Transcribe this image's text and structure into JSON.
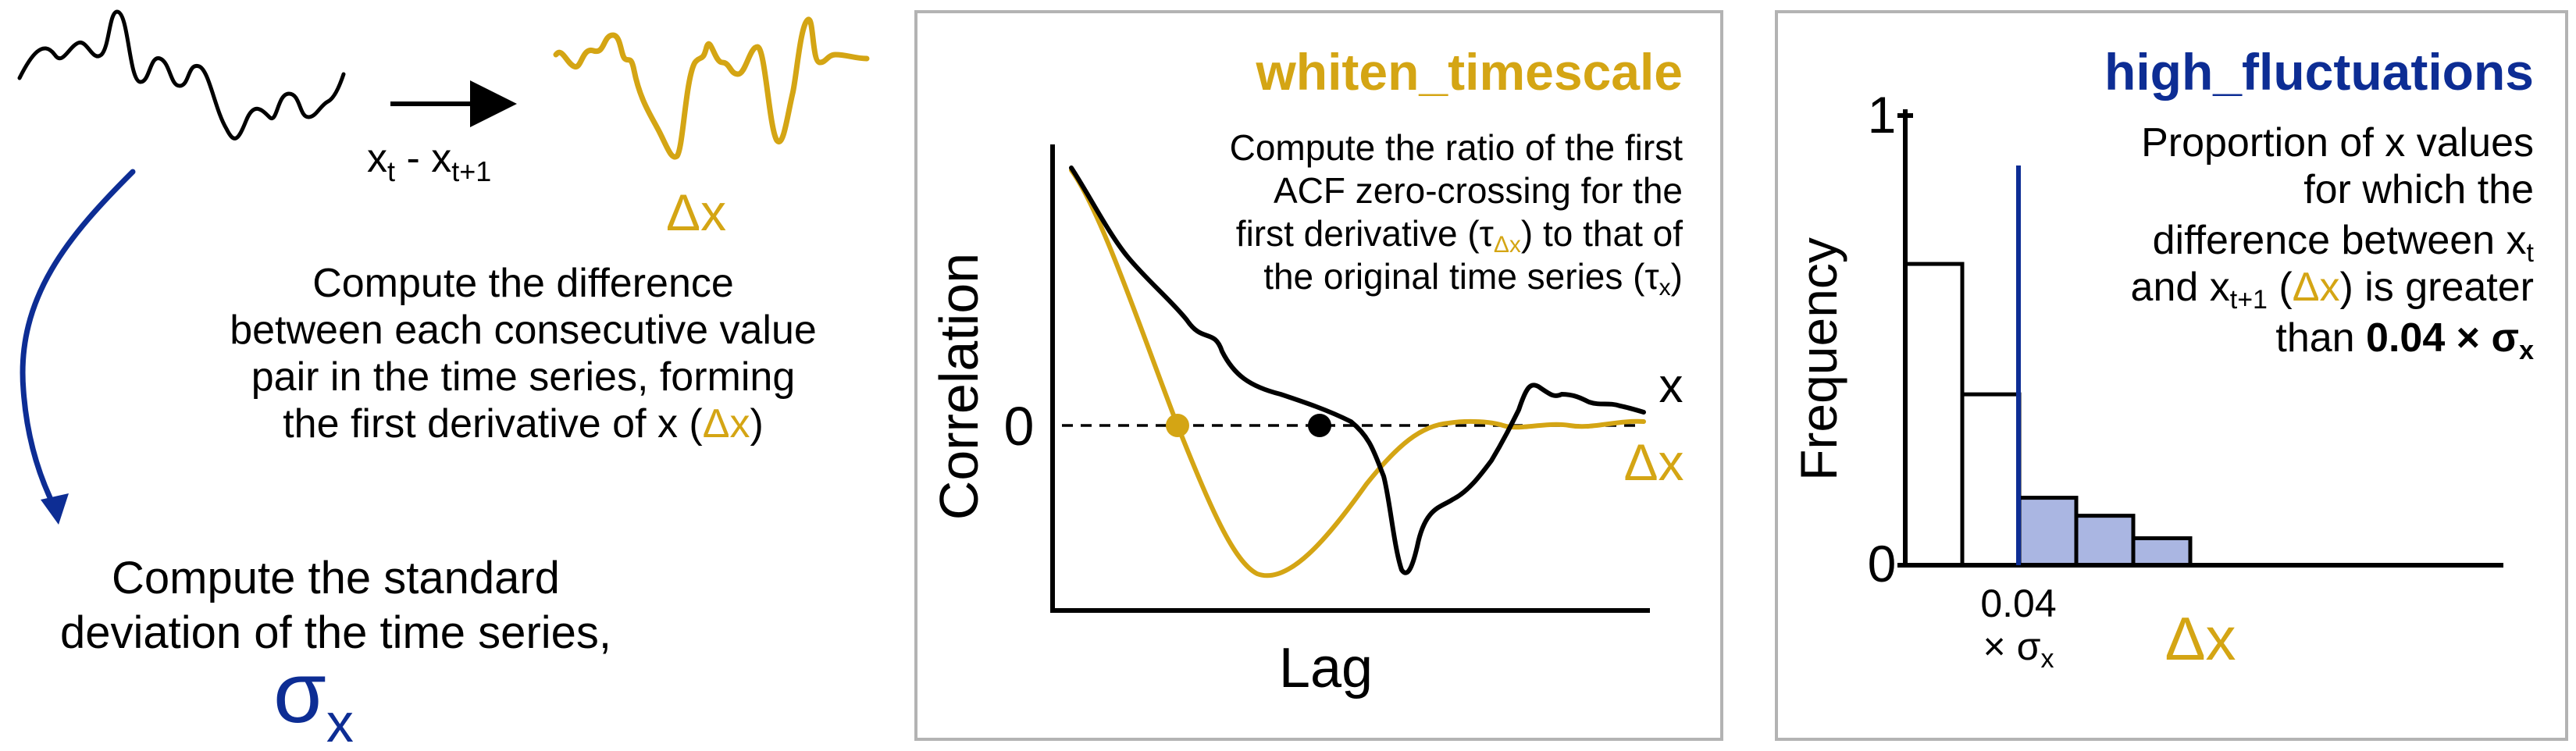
{
  "colors": {
    "gold": "#D4A514",
    "navy": "#0D2D94",
    "black": "#000000",
    "panel_border": "#B3B3B3",
    "bar_fill": "#AAB6E2"
  },
  "left": {
    "transform_main": "x",
    "transform_sub_t": "t",
    "transform_minus": " - x",
    "transform_sub_t1": "t+1",
    "delta_label": "Δx",
    "diff_lines": [
      "Compute the difference",
      "between each consecutive value",
      "pair in the time series, forming"
    ],
    "diff_line4_pre": "the first derivative of x (",
    "diff_line4_delta": "Δx",
    "diff_line4_post": ")",
    "std_lines": [
      "Compute the standard",
      "deviation of the time series,"
    ],
    "sigma": "σ",
    "sigma_sub": "x"
  },
  "middle": {
    "title": "whiten_timescale",
    "desc_line1": "Compute the ratio of the first",
    "desc_line2": "ACF zero-crossing for the",
    "desc_line3_pre": "first derivative (τ",
    "desc_line3_sub": "Δx",
    "desc_line3_post": ") to that of",
    "desc_line4_pre": "the original time series (τ",
    "desc_line4_sub": "x",
    "desc_line4_post": ")",
    "ylabel": "Correlation",
    "xlabel": "Lag",
    "zero_tick": "0",
    "series_x_label": "x",
    "series_dx_label": "Δx"
  },
  "right": {
    "title": "high_fluctuations",
    "desc_line1": "Proportion of x values",
    "desc_line2": "for which the",
    "desc_line3_pre": "difference between x",
    "desc_line3_sub": "t",
    "desc_line4_pre": "and x",
    "desc_line4_sub": "t+1",
    "desc_line4_mid": " (",
    "desc_line4_delta": "Δx",
    "desc_line4_post": ") is greater",
    "desc_line5_pre": "than ",
    "desc_line5_bold": "0.04 × σ",
    "desc_line5_sub": "x",
    "ylabel": "Frequency",
    "tick_1": "1",
    "tick_0": "0",
    "thresh_line1": "0.04",
    "thresh_line2_pre": "× σ",
    "thresh_line2_sub": "x",
    "xlabel": "Δx"
  },
  "chart_data": {
    "type": "bar",
    "ylabel": "Frequency",
    "xlabel": "Δx",
    "ylim": [
      0,
      1
    ],
    "threshold_label": "0.04 × σx",
    "values": [
      0.67,
      0.38,
      0.15,
      0.11,
      0.06
    ],
    "above_threshold": [
      false,
      false,
      true,
      true,
      true
    ]
  }
}
